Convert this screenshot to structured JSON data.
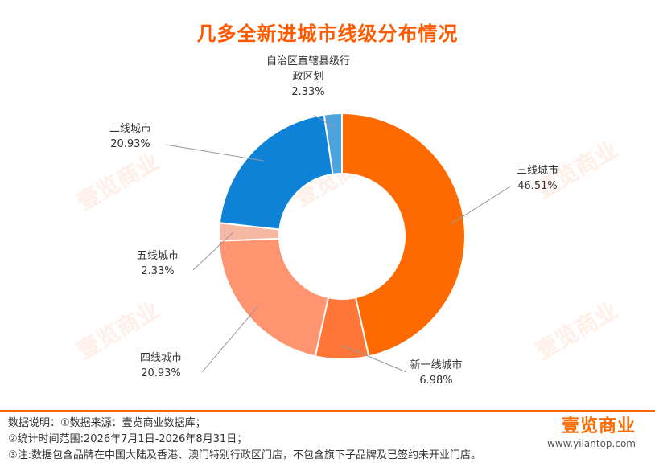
{
  "header": {
    "title": "几多全新进城市线级分布情况"
  },
  "colors": {
    "accent": "#ff6a00",
    "title": "#ff5a00",
    "leader_line": "#999999"
  },
  "chart_data": {
    "type": "pie",
    "title": "几多全新进城市线级分布情况",
    "donut": true,
    "slices": [
      {
        "label": "三线城市",
        "value": 46.51,
        "value_text": "46.51%",
        "color": "#ff6a00"
      },
      {
        "label": "新一线城市",
        "value": 6.98,
        "value_text": "6.98%",
        "color": "#ff7638"
      },
      {
        "label": "四线城市",
        "value": 20.93,
        "value_text": "20.93%",
        "color": "#ff9470"
      },
      {
        "label": "五线城市",
        "value": 2.33,
        "value_text": "2.33%",
        "color": "#f5b8a3"
      },
      {
        "label": "二线城市",
        "value": 20.93,
        "value_text": "20.93%",
        "color": "#0e82d6"
      },
      {
        "label": "自治区直辖县级行政区划",
        "label_lines": [
          "自治区直辖县级行",
          "政区划"
        ],
        "value": 2.33,
        "value_text": "2.33%",
        "color": "#4fa3dc"
      }
    ]
  },
  "footer": {
    "notes": [
      "数据说明：①数据来源：壹览商业数据库；",
      "②统计时间范围:2026年7月1日-2026年8月31日；",
      "③注:数据包含品牌在中国大陆及香港、澳门特别行政区门店，不包含旗下子品牌及已签约未开业门店。"
    ],
    "logo_text": "壹览商业",
    "logo_url": "www.yilantop.com"
  },
  "watermark": {
    "text": "壹览商业"
  }
}
